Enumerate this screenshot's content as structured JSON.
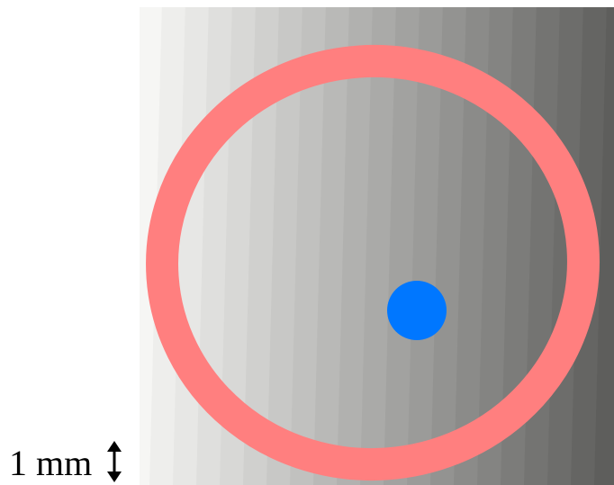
{
  "scale_bar": {
    "label": "1 mm"
  }
}
